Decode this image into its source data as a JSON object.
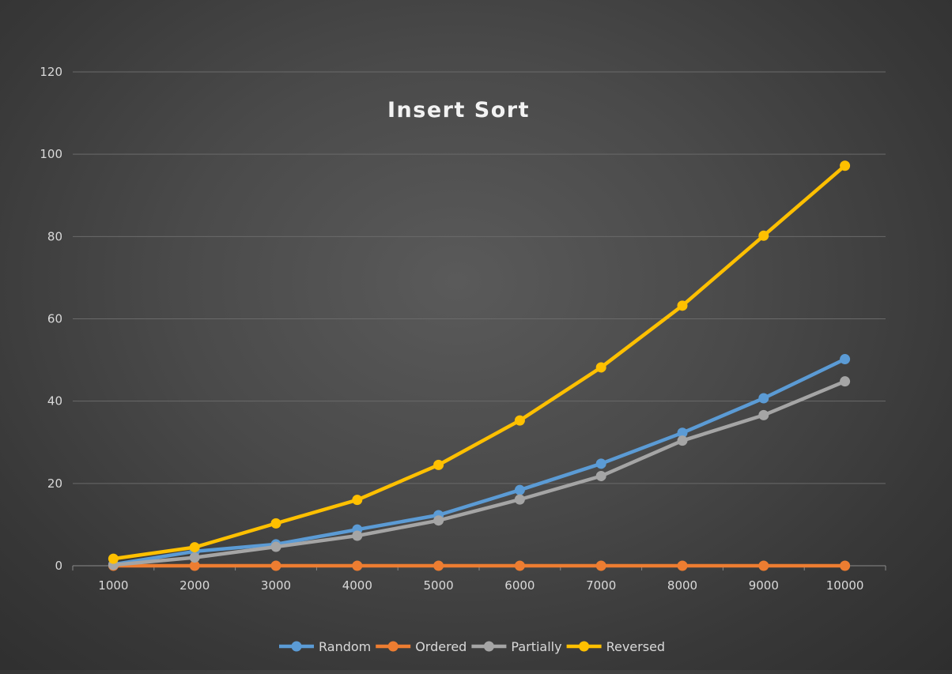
{
  "chart_data": {
    "type": "line",
    "title": "Insert Sort",
    "xlabel": "",
    "ylabel": "",
    "categories": [
      "1000",
      "2000",
      "3000",
      "4000",
      "5000",
      "6000",
      "7000",
      "8000",
      "9000",
      "10000"
    ],
    "ylim": [
      0,
      120
    ],
    "yticks": [
      "0",
      "20",
      "40",
      "60",
      "80",
      "100",
      "120"
    ],
    "grid": true,
    "legend_position": "bottom",
    "series": [
      {
        "name": "Random",
        "color": "#5b9bd5",
        "values": [
          0.3,
          3.5,
          5.2,
          8.8,
          12.3,
          18.4,
          24.8,
          32.3,
          40.7,
          50.2
        ]
      },
      {
        "name": "Ordered",
        "color": "#ed7d31",
        "values": [
          0,
          0,
          0,
          0,
          0,
          0,
          0,
          0,
          0,
          0
        ]
      },
      {
        "name": "Partially",
        "color": "#a5a5a5",
        "values": [
          0.2,
          2.0,
          4.6,
          7.3,
          11.0,
          16.1,
          21.8,
          30.4,
          36.6,
          44.8
        ]
      },
      {
        "name": "Reversed",
        "color": "#ffc000",
        "values": [
          1.7,
          4.5,
          10.3,
          16.0,
          24.5,
          35.3,
          48.2,
          63.2,
          80.2,
          97.2
        ]
      }
    ]
  }
}
